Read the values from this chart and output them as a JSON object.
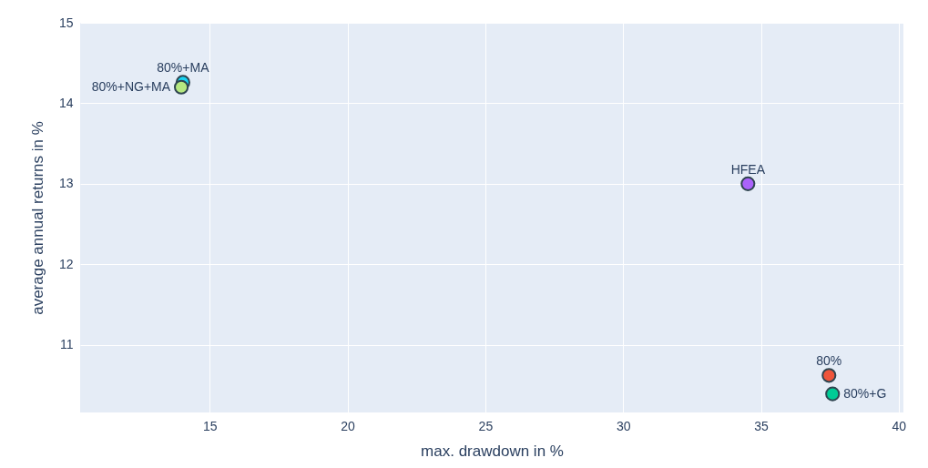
{
  "chart_data": {
    "type": "scatter",
    "xlabel": "max. drawdown in %",
    "ylabel": "average annual returns in %",
    "xlim": [
      10.3,
      40.17
    ],
    "ylim": [
      10.16,
      15
    ],
    "xticks": [
      15,
      20,
      25,
      30,
      35,
      40
    ],
    "yticks": [
      11,
      12,
      13,
      14,
      15
    ],
    "grid": true,
    "legend": false,
    "marker": "circle",
    "series": [
      {
        "name": "80%+MA",
        "color": "#19d3f3",
        "x": [
          14.03
        ],
        "values": [
          14.26
        ]
      },
      {
        "name": "80%+NG+MA",
        "color": "#b6e880",
        "x": [
          13.97
        ],
        "values": [
          14.2
        ]
      },
      {
        "name": "HFEA",
        "color": "#ab63fa",
        "x": [
          34.53
        ],
        "values": [
          13.0
        ]
      },
      {
        "name": "80%",
        "color": "#ef553b",
        "x": [
          37.47
        ],
        "values": [
          10.62
        ]
      },
      {
        "name": "80%+G",
        "color": "#00cc96",
        "x": [
          37.6
        ],
        "values": [
          10.39
        ]
      }
    ]
  }
}
